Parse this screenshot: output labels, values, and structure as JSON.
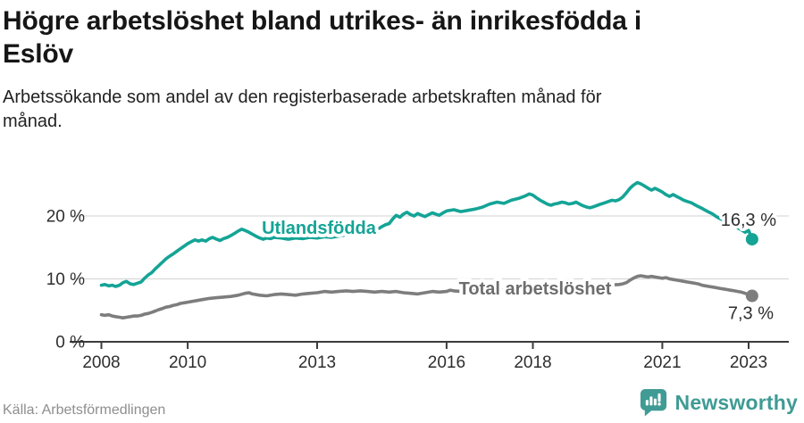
{
  "header": {
    "title_lines": [
      "Högre arbetslöshet bland utrikes- än inrikesfödda i",
      "Eslöv"
    ],
    "subtitle_lines": [
      "Arbetssökande som andel av den registerbaserade arbetskraften månad för",
      "månad."
    ]
  },
  "footer": {
    "source": "Källa: Arbetsförmedlingen",
    "logo_text": "Newsworthy"
  },
  "colors": {
    "teal_line": "#14a496",
    "gray_line": "#7d7d7d",
    "gray_label": "#6d6d6d",
    "logo_teal": "#3f9b94",
    "grid": "#d9d9d9",
    "axis": "#3c3c3c",
    "axis_text": "#2e2e2e",
    "end_label_text": "#2f2f2f"
  },
  "chart_data": {
    "type": "line",
    "title": "Högre arbetslöshet bland utrikes- än inrikesfödda i Eslöv",
    "subtitle": "Arbetssökande som andel av den registerbaserade arbetskraften månad för månad.",
    "xlabel": "",
    "ylabel": "",
    "x_range": [
      2008.0,
      2023.3
    ],
    "ylim": [
      0,
      26
    ],
    "grid": "horizontal",
    "legend_position": "inline-labels",
    "x_ticks": [
      2008,
      2010,
      2013,
      2016,
      2018,
      2021,
      2023
    ],
    "y_ticks": [
      {
        "v": 0,
        "label": "0 %"
      },
      {
        "v": 10,
        "label": "10 %"
      },
      {
        "v": 20,
        "label": "20 %"
      }
    ],
    "series": [
      {
        "name": "Utlandsfödda",
        "label": "Utlandsfödda",
        "color": "#14a496",
        "label_color": "#14a496",
        "end_label": "16,3 %",
        "end_value": 16.3,
        "points": [
          [
            2008.0,
            9.0
          ],
          [
            2008.08,
            9.1
          ],
          [
            2008.17,
            8.9
          ],
          [
            2008.25,
            9.0
          ],
          [
            2008.33,
            8.8
          ],
          [
            2008.42,
            9.0
          ],
          [
            2008.5,
            9.4
          ],
          [
            2008.58,
            9.6
          ],
          [
            2008.67,
            9.2
          ],
          [
            2008.75,
            9.1
          ],
          [
            2008.83,
            9.3
          ],
          [
            2008.92,
            9.5
          ],
          [
            2009.0,
            10.1
          ],
          [
            2009.08,
            10.6
          ],
          [
            2009.17,
            11.0
          ],
          [
            2009.25,
            11.6
          ],
          [
            2009.33,
            12.1
          ],
          [
            2009.42,
            12.7
          ],
          [
            2009.5,
            13.2
          ],
          [
            2009.58,
            13.6
          ],
          [
            2009.67,
            14.0
          ],
          [
            2009.75,
            14.4
          ],
          [
            2009.83,
            14.8
          ],
          [
            2009.92,
            15.2
          ],
          [
            2010.0,
            15.6
          ],
          [
            2010.08,
            15.9
          ],
          [
            2010.17,
            16.2
          ],
          [
            2010.25,
            16.0
          ],
          [
            2010.33,
            16.2
          ],
          [
            2010.42,
            16.0
          ],
          [
            2010.5,
            16.4
          ],
          [
            2010.58,
            16.6
          ],
          [
            2010.67,
            16.3
          ],
          [
            2010.75,
            16.1
          ],
          [
            2010.83,
            16.4
          ],
          [
            2010.92,
            16.6
          ],
          [
            2011.0,
            16.9
          ],
          [
            2011.08,
            17.2
          ],
          [
            2011.17,
            17.6
          ],
          [
            2011.25,
            17.9
          ],
          [
            2011.33,
            17.7
          ],
          [
            2011.42,
            17.4
          ],
          [
            2011.5,
            17.1
          ],
          [
            2011.58,
            16.8
          ],
          [
            2011.67,
            16.5
          ],
          [
            2011.75,
            16.3
          ],
          [
            2011.83,
            16.5
          ],
          [
            2011.92,
            16.4
          ],
          [
            2012.0,
            16.6
          ],
          [
            2012.17,
            16.5
          ],
          [
            2012.33,
            16.3
          ],
          [
            2012.5,
            16.5
          ],
          [
            2012.67,
            16.4
          ],
          [
            2012.83,
            16.6
          ],
          [
            2013.0,
            16.5
          ],
          [
            2013.17,
            16.7
          ],
          [
            2013.33,
            16.6
          ],
          [
            2013.5,
            16.8
          ],
          [
            2013.67,
            17.0
          ],
          [
            2013.83,
            16.9
          ],
          [
            2014.0,
            17.1
          ],
          [
            2014.17,
            17.3
          ],
          [
            2014.33,
            17.6
          ],
          [
            2014.5,
            18.3
          ],
          [
            2014.58,
            18.6
          ],
          [
            2014.67,
            18.8
          ],
          [
            2014.75,
            19.5
          ],
          [
            2014.83,
            20.1
          ],
          [
            2014.92,
            19.8
          ],
          [
            2015.0,
            20.3
          ],
          [
            2015.08,
            20.6
          ],
          [
            2015.17,
            20.2
          ],
          [
            2015.25,
            20.0
          ],
          [
            2015.33,
            20.4
          ],
          [
            2015.42,
            20.1
          ],
          [
            2015.5,
            19.9
          ],
          [
            2015.58,
            20.2
          ],
          [
            2015.67,
            20.5
          ],
          [
            2015.75,
            20.3
          ],
          [
            2015.83,
            20.1
          ],
          [
            2015.92,
            20.5
          ],
          [
            2016.0,
            20.8
          ],
          [
            2016.17,
            21.0
          ],
          [
            2016.33,
            20.7
          ],
          [
            2016.5,
            20.9
          ],
          [
            2016.67,
            21.1
          ],
          [
            2016.83,
            21.4
          ],
          [
            2017.0,
            21.9
          ],
          [
            2017.17,
            22.2
          ],
          [
            2017.33,
            22.0
          ],
          [
            2017.5,
            22.5
          ],
          [
            2017.67,
            22.8
          ],
          [
            2017.83,
            23.2
          ],
          [
            2017.92,
            23.5
          ],
          [
            2018.0,
            23.3
          ],
          [
            2018.08,
            22.9
          ],
          [
            2018.17,
            22.5
          ],
          [
            2018.25,
            22.2
          ],
          [
            2018.33,
            21.9
          ],
          [
            2018.42,
            21.7
          ],
          [
            2018.5,
            21.9
          ],
          [
            2018.58,
            22.0
          ],
          [
            2018.67,
            22.2
          ],
          [
            2018.75,
            22.1
          ],
          [
            2018.83,
            21.9
          ],
          [
            2018.92,
            22.0
          ],
          [
            2019.0,
            22.2
          ],
          [
            2019.08,
            21.9
          ],
          [
            2019.17,
            21.6
          ],
          [
            2019.25,
            21.4
          ],
          [
            2019.33,
            21.3
          ],
          [
            2019.42,
            21.5
          ],
          [
            2019.5,
            21.7
          ],
          [
            2019.58,
            21.9
          ],
          [
            2019.67,
            22.1
          ],
          [
            2019.75,
            22.3
          ],
          [
            2019.83,
            22.5
          ],
          [
            2019.92,
            22.4
          ],
          [
            2020.0,
            22.6
          ],
          [
            2020.08,
            23.0
          ],
          [
            2020.17,
            23.7
          ],
          [
            2020.25,
            24.4
          ],
          [
            2020.33,
            24.9
          ],
          [
            2020.42,
            25.3
          ],
          [
            2020.5,
            25.1
          ],
          [
            2020.58,
            24.8
          ],
          [
            2020.67,
            24.4
          ],
          [
            2020.75,
            24.1
          ],
          [
            2020.83,
            24.4
          ],
          [
            2020.92,
            24.1
          ],
          [
            2021.0,
            23.8
          ],
          [
            2021.08,
            23.4
          ],
          [
            2021.17,
            23.1
          ],
          [
            2021.25,
            23.4
          ],
          [
            2021.33,
            23.1
          ],
          [
            2021.42,
            22.8
          ],
          [
            2021.5,
            22.5
          ],
          [
            2021.58,
            22.3
          ],
          [
            2021.67,
            22.1
          ],
          [
            2021.75,
            21.8
          ],
          [
            2021.83,
            21.5
          ],
          [
            2021.92,
            21.2
          ],
          [
            2022.0,
            20.9
          ],
          [
            2022.08,
            20.6
          ],
          [
            2022.17,
            20.3
          ],
          [
            2022.25,
            19.9
          ],
          [
            2022.33,
            19.6
          ],
          [
            2022.42,
            19.3
          ],
          [
            2022.5,
            19.0
          ],
          [
            2022.58,
            18.7
          ],
          [
            2022.67,
            18.4
          ],
          [
            2022.75,
            18.1
          ],
          [
            2022.83,
            17.8
          ],
          [
            2022.92,
            17.4
          ],
          [
            2023.0,
            17.7
          ],
          [
            2023.08,
            16.3
          ]
        ]
      },
      {
        "name": "Total arbetslöshet",
        "label": "Total arbetslöshet",
        "color": "#7d7d7d",
        "label_color": "#6d6d6d",
        "end_label": "7,3 %",
        "end_value": 7.3,
        "points": [
          [
            2008.0,
            4.3
          ],
          [
            2008.08,
            4.2
          ],
          [
            2008.17,
            4.3
          ],
          [
            2008.25,
            4.1
          ],
          [
            2008.33,
            4.0
          ],
          [
            2008.42,
            3.9
          ],
          [
            2008.5,
            3.8
          ],
          [
            2008.58,
            3.9
          ],
          [
            2008.67,
            4.0
          ],
          [
            2008.75,
            4.1
          ],
          [
            2008.83,
            4.1
          ],
          [
            2008.92,
            4.2
          ],
          [
            2009.0,
            4.4
          ],
          [
            2009.08,
            4.5
          ],
          [
            2009.17,
            4.7
          ],
          [
            2009.25,
            4.9
          ],
          [
            2009.33,
            5.1
          ],
          [
            2009.42,
            5.3
          ],
          [
            2009.5,
            5.5
          ],
          [
            2009.58,
            5.6
          ],
          [
            2009.67,
            5.8
          ],
          [
            2009.75,
            5.9
          ],
          [
            2009.83,
            6.1
          ],
          [
            2009.92,
            6.2
          ],
          [
            2010.0,
            6.3
          ],
          [
            2010.17,
            6.5
          ],
          [
            2010.33,
            6.7
          ],
          [
            2010.5,
            6.9
          ],
          [
            2010.67,
            7.0
          ],
          [
            2010.83,
            7.1
          ],
          [
            2011.0,
            7.2
          ],
          [
            2011.17,
            7.4
          ],
          [
            2011.33,
            7.7
          ],
          [
            2011.42,
            7.8
          ],
          [
            2011.5,
            7.6
          ],
          [
            2011.67,
            7.4
          ],
          [
            2011.83,
            7.3
          ],
          [
            2012.0,
            7.5
          ],
          [
            2012.17,
            7.6
          ],
          [
            2012.33,
            7.5
          ],
          [
            2012.5,
            7.4
          ],
          [
            2012.67,
            7.6
          ],
          [
            2012.83,
            7.7
          ],
          [
            2013.0,
            7.8
          ],
          [
            2013.17,
            8.0
          ],
          [
            2013.33,
            7.9
          ],
          [
            2013.5,
            8.0
          ],
          [
            2013.67,
            8.1
          ],
          [
            2013.83,
            8.0
          ],
          [
            2014.0,
            8.1
          ],
          [
            2014.17,
            8.0
          ],
          [
            2014.33,
            7.9
          ],
          [
            2014.5,
            8.0
          ],
          [
            2014.67,
            7.9
          ],
          [
            2014.83,
            8.0
          ],
          [
            2015.0,
            7.8
          ],
          [
            2015.17,
            7.7
          ],
          [
            2015.33,
            7.6
          ],
          [
            2015.5,
            7.8
          ],
          [
            2015.67,
            8.0
          ],
          [
            2015.83,
            7.9
          ],
          [
            2016.0,
            8.0
          ],
          [
            2016.08,
            8.2
          ],
          [
            2016.17,
            8.1
          ],
          [
            2016.33,
            8.0
          ],
          [
            2016.5,
            8.2
          ],
          [
            2016.67,
            8.3
          ],
          [
            2016.83,
            8.3
          ],
          [
            2017.0,
            8.4
          ],
          [
            2017.25,
            8.4
          ],
          [
            2017.5,
            8.5
          ],
          [
            2017.75,
            8.5
          ],
          [
            2018.0,
            8.6
          ],
          [
            2018.25,
            8.6
          ],
          [
            2018.5,
            8.7
          ],
          [
            2018.75,
            8.7
          ],
          [
            2019.0,
            8.8
          ],
          [
            2019.25,
            8.8
          ],
          [
            2019.5,
            8.9
          ],
          [
            2019.75,
            9.0
          ],
          [
            2020.0,
            9.1
          ],
          [
            2020.08,
            9.2
          ],
          [
            2020.17,
            9.4
          ],
          [
            2020.25,
            9.8
          ],
          [
            2020.33,
            10.1
          ],
          [
            2020.42,
            10.4
          ],
          [
            2020.5,
            10.5
          ],
          [
            2020.58,
            10.4
          ],
          [
            2020.67,
            10.3
          ],
          [
            2020.75,
            10.4
          ],
          [
            2020.83,
            10.3
          ],
          [
            2020.92,
            10.2
          ],
          [
            2021.0,
            10.1
          ],
          [
            2021.08,
            10.2
          ],
          [
            2021.17,
            10.0
          ],
          [
            2021.25,
            9.9
          ],
          [
            2021.33,
            9.8
          ],
          [
            2021.42,
            9.7
          ],
          [
            2021.5,
            9.6
          ],
          [
            2021.58,
            9.5
          ],
          [
            2021.67,
            9.4
          ],
          [
            2021.75,
            9.3
          ],
          [
            2021.83,
            9.2
          ],
          [
            2021.92,
            9.0
          ],
          [
            2022.0,
            8.9
          ],
          [
            2022.08,
            8.8
          ],
          [
            2022.17,
            8.7
          ],
          [
            2022.25,
            8.6
          ],
          [
            2022.33,
            8.5
          ],
          [
            2022.42,
            8.4
          ],
          [
            2022.5,
            8.3
          ],
          [
            2022.58,
            8.2
          ],
          [
            2022.67,
            8.1
          ],
          [
            2022.75,
            8.0
          ],
          [
            2022.83,
            7.9
          ],
          [
            2022.92,
            7.7
          ],
          [
            2023.0,
            7.5
          ],
          [
            2023.08,
            7.3
          ]
        ]
      }
    ]
  }
}
